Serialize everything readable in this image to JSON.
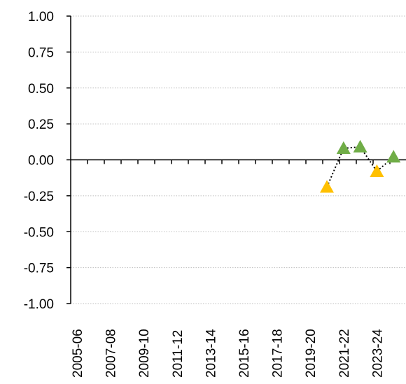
{
  "chart_data": {
    "type": "scatter",
    "title": "",
    "xlabel": "",
    "ylabel": "",
    "ylim": [
      -1.0,
      1.0
    ],
    "y_ticks": [
      "1.00",
      "0.75",
      "0.50",
      "0.25",
      "0.00",
      "-0.25",
      "-0.50",
      "-0.75",
      "-1.00"
    ],
    "y_tick_values": [
      1.0,
      0.75,
      0.5,
      0.25,
      0.0,
      -0.25,
      -0.5,
      -0.75,
      -1.0
    ],
    "categories": [
      "2005-06",
      "2006-07",
      "2007-08",
      "2008-09",
      "2009-10",
      "2010-11",
      "2011-12",
      "2012-13",
      "2013-14",
      "2014-15",
      "2015-16",
      "2016-17",
      "2017-18",
      "2018-19",
      "2019-20",
      "2020-21",
      "2021-22",
      "2022-23",
      "2023-24",
      "2024-25"
    ],
    "x_tick_labels": [
      "2005-06",
      "2007-08",
      "2009-10",
      "2011-12",
      "2013-14",
      "2015-16",
      "2017-18",
      "2019-20",
      "2021-22",
      "2023-24"
    ],
    "grid": "horizontal-dotted",
    "colors": {
      "positive": "#70AD47",
      "negative": "#FFC000",
      "axis": "#000000",
      "grid": "#BFBFBF",
      "connector": "#000000"
    },
    "points": [
      {
        "category": "2020-21",
        "value": -0.19,
        "color": "#FFC000"
      },
      {
        "category": "2021-22",
        "value": 0.08,
        "color": "#70AD47"
      },
      {
        "category": "2022-23",
        "value": 0.09,
        "color": "#70AD47"
      },
      {
        "category": "2023-24",
        "value": -0.08,
        "color": "#FFC000"
      },
      {
        "category": "2024-25",
        "value": 0.02,
        "color": "#70AD47"
      }
    ]
  }
}
